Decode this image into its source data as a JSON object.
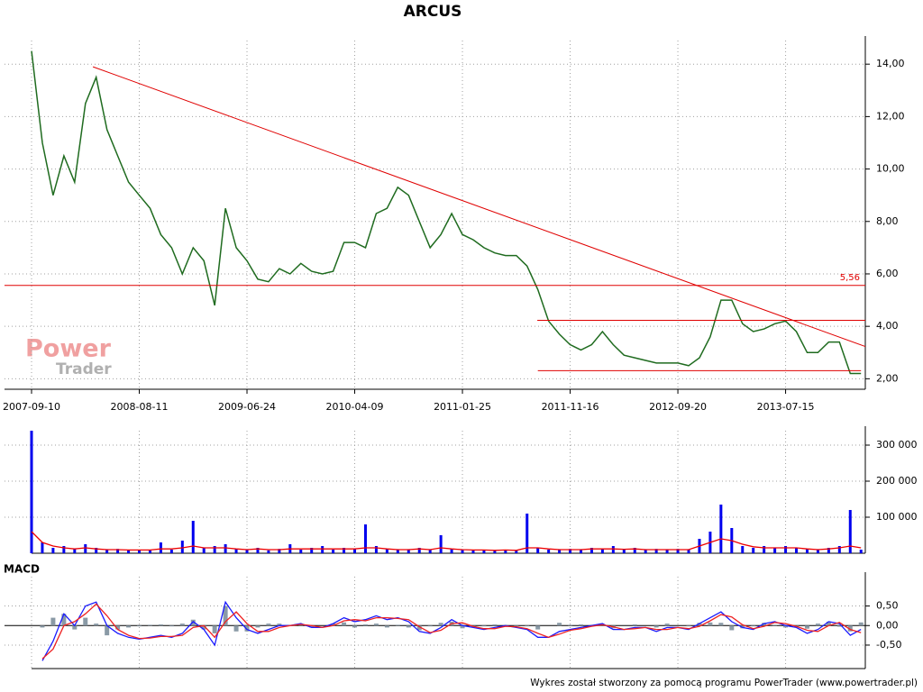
{
  "chart_data": [
    {
      "type": "line",
      "title": "ARCUS",
      "x": [
        0,
        20,
        40,
        60,
        80,
        100,
        120,
        140,
        160,
        180,
        200,
        220,
        240,
        260,
        280,
        300,
        320,
        340,
        360,
        380,
        400,
        420,
        440,
        460,
        480,
        500,
        520,
        540,
        560,
        580,
        600,
        620,
        640,
        660,
        680,
        700,
        720,
        740,
        760,
        780,
        800,
        820,
        840,
        860,
        880,
        900,
        920,
        940,
        960,
        980,
        1000,
        1020,
        1040,
        1060,
        1080,
        1100,
        1120,
        1140,
        1160,
        1180,
        1200,
        1220,
        1240,
        1260,
        1280,
        1300,
        1320,
        1340,
        1360,
        1380,
        1400,
        1420,
        1440,
        1460,
        1480,
        1500,
        1520,
        1540
      ],
      "series": [
        {
          "color": "#1f6b1f",
          "values": [
            14.5,
            11.0,
            9.0,
            10.5,
            9.5,
            12.5,
            13.5,
            11.5,
            10.5,
            9.5,
            9.0,
            8.5,
            7.5,
            7.0,
            6.0,
            7.0,
            6.5,
            4.8,
            8.5,
            7.0,
            6.5,
            5.8,
            5.7,
            6.2,
            6.0,
            6.4,
            6.1,
            6.0,
            6.1,
            7.2,
            7.2,
            7.0,
            8.3,
            8.5,
            9.3,
            9.0,
            8.0,
            7.0,
            7.5,
            8.3,
            7.5,
            7.3,
            7.0,
            6.8,
            6.7,
            6.7,
            6.3,
            5.4,
            4.2,
            3.7,
            3.3,
            3.1,
            3.3,
            3.8,
            3.3,
            2.9,
            2.8,
            2.7,
            2.6,
            2.6,
            2.6,
            2.5,
            2.8,
            3.6,
            5.0,
            5.0,
            4.1,
            3.8,
            3.9,
            4.1,
            4.2,
            3.8,
            3.0,
            3.0,
            3.4,
            3.4,
            2.2,
            2.2
          ]
        }
      ],
      "xlim": [
        0,
        1548
      ],
      "xticks": [
        {
          "value": 0,
          "label": "2007-09-10"
        },
        {
          "value": 200,
          "label": "2008-08-11"
        },
        {
          "value": 400,
          "label": "2009-06-24"
        },
        {
          "value": 600,
          "label": "2010-04-09"
        },
        {
          "value": 800,
          "label": "2011-01-25"
        },
        {
          "value": 1000,
          "label": "2011-11-16"
        },
        {
          "value": 1200,
          "label": "2012-09-20"
        },
        {
          "value": 1400,
          "label": "2013-07-15"
        }
      ],
      "ylim": [
        1.6,
        14.9
      ],
      "yticks": [
        {
          "value": 2,
          "label": "2,00"
        },
        {
          "value": 4,
          "label": "4,00"
        },
        {
          "value": 6,
          "label": "6,00"
        },
        {
          "value": 8,
          "label": "8,00"
        },
        {
          "value": 10,
          "label": "10,00"
        },
        {
          "value": 12,
          "label": "12,00"
        },
        {
          "value": 14,
          "label": "14,00"
        }
      ],
      "grid": true,
      "trend_color": "#e00000",
      "trendlines": [
        {
          "x": [
            114,
            1548
          ],
          "y": [
            13.9,
            3.23
          ]
        },
        {
          "x": [
            939,
            1548
          ],
          "y": [
            4.23,
            4.23
          ]
        },
        {
          "x": [
            940,
            1540
          ],
          "y": [
            2.31,
            2.31
          ]
        }
      ],
      "hline": {
        "value": 5.56,
        "label": "5,56"
      },
      "watermark": [
        "Power",
        "Trader"
      ]
    },
    {
      "type": "bar",
      "x": [
        0,
        20,
        40,
        60,
        80,
        100,
        120,
        140,
        160,
        180,
        200,
        220,
        240,
        260,
        280,
        300,
        320,
        340,
        360,
        380,
        400,
        420,
        440,
        460,
        480,
        500,
        520,
        540,
        560,
        580,
        600,
        620,
        640,
        660,
        680,
        700,
        720,
        740,
        760,
        780,
        800,
        820,
        840,
        860,
        880,
        900,
        920,
        940,
        960,
        980,
        1000,
        1020,
        1040,
        1060,
        1080,
        1100,
        1120,
        1140,
        1160,
        1180,
        1200,
        1220,
        1240,
        1260,
        1280,
        1300,
        1320,
        1340,
        1360,
        1380,
        1400,
        1420,
        1440,
        1460,
        1480,
        1500,
        1520,
        1540
      ],
      "series": [
        {
          "type": "bar",
          "color": "#0000ee",
          "values": [
            340000,
            30000,
            15000,
            20000,
            12000,
            25000,
            15000,
            10000,
            12000,
            8000,
            10000,
            8000,
            30000,
            10000,
            35000,
            90000,
            15000,
            20000,
            25000,
            12000,
            10000,
            15000,
            8000,
            12000,
            25000,
            10000,
            15000,
            20000,
            10000,
            15000,
            12000,
            80000,
            20000,
            12000,
            10000,
            10000,
            15000,
            10000,
            50000,
            12000,
            10000,
            8000,
            10000,
            8000,
            10000,
            8000,
            110000,
            15000,
            10000,
            10000,
            12000,
            10000,
            15000,
            12000,
            20000,
            10000,
            15000,
            10000,
            12000,
            10000,
            12000,
            10000,
            40000,
            60000,
            135000,
            70000,
            20000,
            15000,
            20000,
            15000,
            20000,
            15000,
            12000,
            10000,
            15000,
            20000,
            120000,
            10000
          ]
        },
        {
          "type": "line",
          "color": "#ee0000",
          "values": [
            60000,
            30000,
            20000,
            15000,
            12000,
            15000,
            12000,
            10000,
            10000,
            9000,
            9000,
            9000,
            12000,
            12000,
            15000,
            20000,
            15000,
            15000,
            15000,
            12000,
            10000,
            12000,
            10000,
            10000,
            12000,
            12000,
            12000,
            12000,
            12000,
            12000,
            12000,
            15000,
            15000,
            12000,
            10000,
            10000,
            12000,
            10000,
            15000,
            12000,
            10000,
            9000,
            9000,
            8000,
            9000,
            8000,
            15000,
            15000,
            12000,
            10000,
            10000,
            10000,
            12000,
            12000,
            12000,
            11000,
            12000,
            10000,
            10000,
            10000,
            10000,
            10000,
            20000,
            30000,
            40000,
            35000,
            25000,
            18000,
            15000,
            15000,
            15000,
            15000,
            12000,
            10000,
            12000,
            15000,
            20000,
            15000
          ]
        }
      ],
      "xlim": [
        0,
        1548
      ],
      "xticks": [
        0,
        200,
        400,
        600,
        800,
        1000,
        1200,
        1400
      ],
      "ylim": [
        0,
        340000
      ],
      "yticks": [
        {
          "value": 100000,
          "label": "100 000"
        },
        {
          "value": 200000,
          "label": "200 000"
        },
        {
          "value": 300000,
          "label": "300 000"
        }
      ],
      "grid": true
    },
    {
      "type": "line",
      "title": "MACD",
      "x": [
        20,
        40,
        60,
        80,
        100,
        120,
        140,
        160,
        180,
        200,
        220,
        240,
        260,
        280,
        300,
        320,
        340,
        360,
        380,
        400,
        420,
        440,
        460,
        480,
        500,
        520,
        540,
        560,
        580,
        600,
        620,
        640,
        660,
        680,
        700,
        720,
        740,
        760,
        780,
        800,
        820,
        840,
        860,
        880,
        900,
        920,
        940,
        960,
        980,
        1000,
        1020,
        1040,
        1060,
        1080,
        1100,
        1120,
        1140,
        1160,
        1180,
        1200,
        1220,
        1240,
        1260,
        1280,
        1300,
        1320,
        1340,
        1360,
        1380,
        1400,
        1420,
        1440,
        1460,
        1480,
        1500,
        1520,
        1540
      ],
      "series": [
        {
          "type": "bar",
          "color": "#8a9aa6",
          "values": [
            -0.05,
            0.2,
            0.3,
            -0.1,
            0.2,
            0.05,
            -0.25,
            -0.1,
            -0.05,
            -0.02,
            0.02,
            0.03,
            -0.02,
            0.05,
            0.15,
            -0.1,
            -0.2,
            0.5,
            -0.15,
            -0.15,
            -0.05,
            0.05,
            0.05,
            0.0,
            0.02,
            -0.05,
            0.0,
            0.05,
            0.08,
            -0.05,
            0.03,
            0.05,
            -0.05,
            0.02,
            -0.05,
            -0.12,
            -0.02,
            0.07,
            0.1,
            -0.07,
            -0.03,
            -0.02,
            0.03,
            0.02,
            -0.02,
            -0.02,
            -0.1,
            0.0,
            0.07,
            0.02,
            0.03,
            0.02,
            0.03,
            -0.07,
            0.0,
            0.03,
            0.0,
            -0.05,
            0.05,
            0.0,
            -0.02,
            0.07,
            0.08,
            0.07,
            -0.12,
            -0.07,
            -0.02,
            0.07,
            0.02,
            -0.05,
            -0.03,
            -0.08,
            0.05,
            0.1,
            -0.03,
            -0.15,
            0.08
          ]
        },
        {
          "type": "line",
          "color": "#1a1aff",
          "values": [
            -0.9,
            -0.4,
            0.3,
            0.0,
            0.5,
            0.6,
            0.0,
            -0.2,
            -0.3,
            -0.35,
            -0.3,
            -0.25,
            -0.3,
            -0.2,
            0.1,
            -0.1,
            -0.5,
            0.6,
            0.2,
            -0.1,
            -0.2,
            -0.1,
            0.0,
            0.0,
            0.05,
            -0.05,
            -0.05,
            0.05,
            0.2,
            0.1,
            0.15,
            0.25,
            0.15,
            0.2,
            0.1,
            -0.15,
            -0.2,
            -0.05,
            0.15,
            0.0,
            -0.05,
            -0.1,
            -0.05,
            0.0,
            -0.05,
            -0.1,
            -0.3,
            -0.3,
            -0.15,
            -0.1,
            -0.05,
            0.0,
            0.05,
            -0.1,
            -0.1,
            -0.05,
            -0.05,
            -0.15,
            -0.05,
            -0.05,
            -0.1,
            0.05,
            0.2,
            0.35,
            0.1,
            -0.05,
            -0.1,
            0.05,
            0.1,
            0.0,
            -0.05,
            -0.2,
            -0.1,
            0.1,
            0.05,
            -0.25,
            -0.1
          ]
        },
        {
          "type": "line",
          "color": "#ee2222",
          "values": [
            -0.85,
            -0.6,
            0.0,
            0.1,
            0.3,
            0.55,
            0.25,
            -0.1,
            -0.25,
            -0.33,
            -0.32,
            -0.28,
            -0.28,
            -0.25,
            -0.05,
            0.0,
            -0.3,
            0.1,
            0.35,
            0.05,
            -0.15,
            -0.15,
            -0.05,
            0.0,
            0.03,
            0.0,
            -0.05,
            0.0,
            0.12,
            0.15,
            0.12,
            0.2,
            0.2,
            0.18,
            0.15,
            -0.03,
            -0.18,
            -0.12,
            0.05,
            0.07,
            -0.02,
            -0.08,
            -0.08,
            -0.02,
            -0.03,
            -0.08,
            -0.2,
            -0.3,
            -0.22,
            -0.12,
            -0.08,
            -0.02,
            0.02,
            -0.03,
            -0.1,
            -0.08,
            -0.05,
            -0.1,
            -0.1,
            -0.05,
            -0.08,
            -0.02,
            0.12,
            0.28,
            0.22,
            0.02,
            -0.08,
            -0.02,
            0.08,
            0.05,
            -0.02,
            -0.12,
            -0.15,
            0.0,
            0.08,
            -0.1,
            -0.18
          ]
        }
      ],
      "xlim": [
        0,
        1548
      ],
      "xticks": [
        0,
        200,
        400,
        600,
        800,
        1000,
        1200,
        1400
      ],
      "ylim": [
        -1.1,
        1.25
      ],
      "yticks": [
        {
          "value": -0.5,
          "label": "-0,50"
        },
        {
          "value": 0,
          "label": "0,00"
        },
        {
          "value": 0.5,
          "label": "0,50"
        }
      ],
      "grid": true
    }
  ],
  "footer": "Wykres został stworzony za pomocą programu PowerTrader (www.powertrader.pl)"
}
